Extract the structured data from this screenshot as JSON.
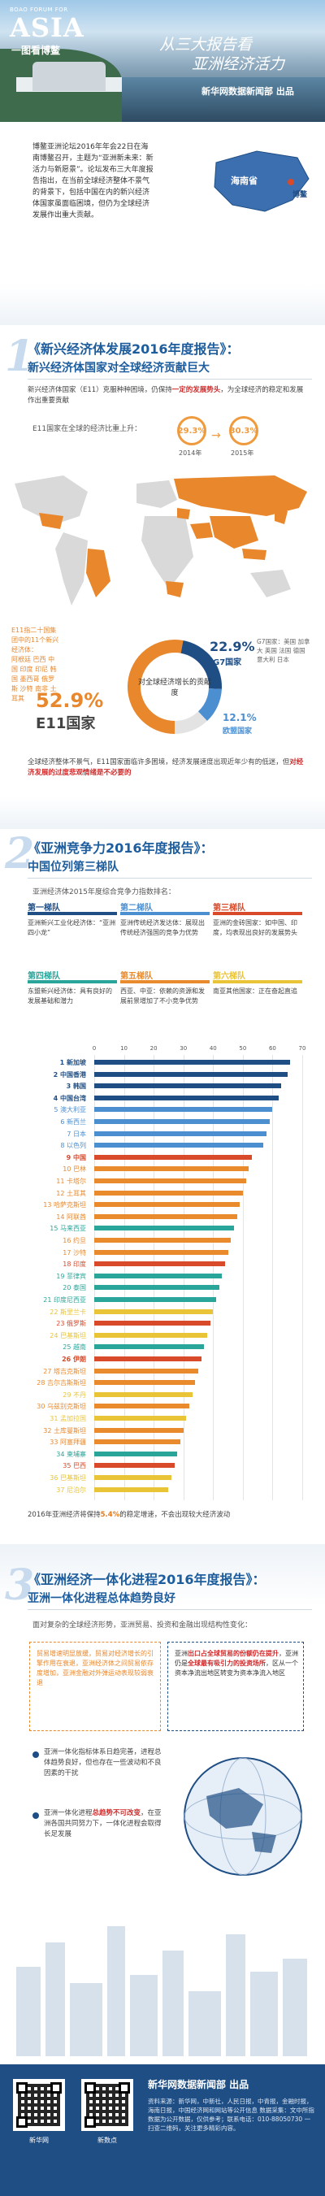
{
  "hero": {
    "brand_small": "BOAO FORUM FOR",
    "brand_big": "ASIA",
    "tagline": "一图看博鳌",
    "title_line1": "从三大报告看",
    "title_line2": "亚洲经济活力",
    "outlet": "新华网数据新闻部 出品"
  },
  "intro": {
    "text": "博鳌亚洲论坛2016年年会22日在海南博鳌召开，主题为“亚洲新未来：新活力与新愿景”。论坛发布三大年度报告指出，在当前全球经济整体不景气的背景下，包括中国在内的新兴经济体国家虽面临困境，但仍为全球经济发展作出重大贡献。",
    "map_province": "海南省",
    "map_place": "博鳌"
  },
  "section1": {
    "num": "1",
    "title": "《新兴经济体发展2016年度报告》：",
    "subtitle": "新兴经济体国家对全球经济贡献巨大",
    "para_pre": "新兴经济体国家（E11）克服种种困境，仍保持",
    "para_hl": "一定的发展势头",
    "para_post": "，为全球经济的稳定和发展作出重要贡献",
    "share_label": "E11国家在全球的经济比重上升：",
    "pct_2014": "29.3%",
    "year_2014": "2014年",
    "pct_2015": "30.3%",
    "year_2015": "2015年",
    "e11_list_title": "E11指二十国集团中的11个新兴经济体：",
    "e11_list": "阿根廷 巴西 中国 印度 印尼 韩国 墨西哥 俄罗斯 沙特 南非 土耳其",
    "donut_center": "对全球经济增长的贡献度",
    "donut_e11_pct": "52.9%",
    "donut_e11_label": "E11国家",
    "donut_g7_pct": "22.9%",
    "donut_g7_label": "G7国家",
    "donut_eu_pct": "12.1%",
    "donut_eu_label": "欧盟国家",
    "g7_note": "G7国家：美国 加拿大 英国 法国 德国 意大利 日本",
    "para2_pre": "全球经济整体不景气，E11国家面临许多困境，经济发展速度出现近年少有的低迷，但",
    "para2_hl": "对经济发展的过度悲观情绪是不必要的"
  },
  "section2": {
    "num": "2",
    "title": "《亚洲竞争力2016年度报告》：",
    "subtitle": "中国位列第三梯队",
    "intro": "亚洲经济体2015年度综合竞争力指数排名：",
    "teams": [
      {
        "label": "第一梯队",
        "text": "亚洲新兴工业化经济体：“亚洲四小龙”",
        "color": "#1f4e85"
      },
      {
        "label": "第二梯队",
        "text": "亚洲传统经济发达体：展现出传统经济强国的竞争力优势",
        "color": "#4b8fd1"
      },
      {
        "label": "第三梯队",
        "text": "亚洲的金砖国家：如中国、印度，均表现出良好的发展势头",
        "color": "#d84a2a"
      },
      {
        "label": "第四梯队",
        "text": "东盟新兴经济体：具有良好的发展基础和潜力",
        "color": "#2aa59a"
      },
      {
        "label": "第五梯队",
        "text": "西亚、中亚：依赖的资源和发展前景增加了不小竞争优势",
        "color": "#e98a2d"
      },
      {
        "label": "第六梯队",
        "text": "南亚其他国家：正在奋起直追",
        "color": "#e9c437"
      }
    ],
    "axis_ticks": [
      "0",
      "10",
      "20",
      "30",
      "40",
      "50",
      "60",
      "70"
    ],
    "footnote_pre": "2016年亚洲经济将保持",
    "footnote_hl": "5.4%",
    "footnote_post": "的稳定增速，不会出现较大经济波动"
  },
  "chart_data": {
    "type": "bar",
    "title": "",
    "xlabel": "",
    "ylabel": "",
    "xlim": [
      0,
      70
    ],
    "categories": [
      "新加坡",
      "中国香港",
      "韩国",
      "中国台湾",
      "澳大利亚",
      "新西兰",
      "日本",
      "以色列",
      "中国",
      "巴林",
      "卡塔尔",
      "土耳其",
      "哈萨克斯坦",
      "阿联酋",
      "马来西亚",
      "约旦",
      "沙特",
      "印度",
      "菲律宾",
      "泰国",
      "印度尼西亚",
      "斯里兰卡",
      "俄罗斯",
      "巴基斯坦",
      "越南",
      "伊朗",
      "塔吉克斯坦",
      "吉尔吉斯斯坦",
      "不丹",
      "乌兹别克斯坦",
      "孟加拉国",
      "土库曼斯坦",
      "阿塞拜疆",
      "柬埔寨",
      "巴西",
      "巴基斯坦",
      "尼泊尔"
    ],
    "ranks": [
      1,
      2,
      3,
      4,
      5,
      6,
      7,
      8,
      9,
      10,
      11,
      12,
      13,
      14,
      15,
      16,
      17,
      18,
      19,
      20,
      21,
      22,
      23,
      24,
      25,
      26,
      27,
      28,
      29,
      30,
      31,
      32,
      33,
      34,
      35,
      36,
      37
    ],
    "values": [
      66,
      65,
      63,
      62,
      60,
      59,
      58,
      57,
      53,
      52,
      51,
      50,
      49,
      48,
      47,
      46,
      45,
      44,
      43,
      42,
      41,
      40,
      39,
      38,
      37,
      36,
      35,
      34,
      33,
      32,
      31,
      30,
      29,
      28,
      27,
      26,
      25
    ],
    "colors": [
      "#1f4e85",
      "#1f4e85",
      "#1f4e85",
      "#1f4e85",
      "#4b8fd1",
      "#4b8fd1",
      "#4b8fd1",
      "#4b8fd1",
      "#d84a2a",
      "#e98a2d",
      "#e98a2d",
      "#e98a2d",
      "#e98a2d",
      "#e98a2d",
      "#2aa59a",
      "#e98a2d",
      "#e98a2d",
      "#d84a2a",
      "#2aa59a",
      "#2aa59a",
      "#2aa59a",
      "#e9c437",
      "#d84a2a",
      "#e9c437",
      "#2aa59a",
      "#d84a2a",
      "#e98a2d",
      "#e98a2d",
      "#e9c437",
      "#e98a2d",
      "#e9c437",
      "#e98a2d",
      "#e98a2d",
      "#2aa59a",
      "#d84a2a",
      "#e9c437",
      "#e9c437"
    ],
    "bold": [
      true,
      true,
      true,
      true,
      false,
      false,
      false,
      false,
      true,
      false,
      false,
      false,
      false,
      false,
      false,
      false,
      false,
      false,
      false,
      false,
      false,
      false,
      false,
      false,
      false,
      true,
      false,
      false,
      false,
      false,
      false,
      false,
      false,
      false,
      false,
      false,
      false
    ]
  },
  "section3": {
    "num": "3",
    "title": "《亚洲经济一体化进程2016年度报告》：",
    "subtitle": "亚洲一体化进程总体趋势良好",
    "intro": "面对复杂的全球经济形势，亚洲贸易、投资和金融出现结构性变化：",
    "box1": "贸易增速明显放缓，贸易对经济增长的引擎作用在衰退，亚洲经济体之间贸易依存度增加，亚洲金融对外弹运动表现较弱衰退",
    "box2_pre": "亚洲",
    "box2_hl1": "出口占全球贸易的份额仍在提升",
    "box2_mid": "，亚洲仍是",
    "box2_hl2": "全球最有吸引力的投资场所",
    "box2_post": "，区从一个资本净流出地区转变为资本净流入地区",
    "point1": "亚洲一体化指标体系日趋完善，进程总体趋势良好，但也存在一些波动和不良因素的干扰",
    "point2_pre": "亚洲一体化进程",
    "point2_hl": "总趋势不可改变",
    "point2_post": "，在亚洲各国共同努力下，一体化进程会取得长足发展"
  },
  "footer": {
    "qr1_label": "新华网",
    "qr2_label": "新数点",
    "outlet": "新华网数据新闻部 出品",
    "credits": "资料来源：新华网，中新社，人民日报，中青报，金融时报，海南日报，中国经济网和网站等公开信息 数据采集：文中所指数据为公开数据，仅供参考；联系电话：010-88050730 一扫查二维码，关注更多精彩内容。"
  }
}
